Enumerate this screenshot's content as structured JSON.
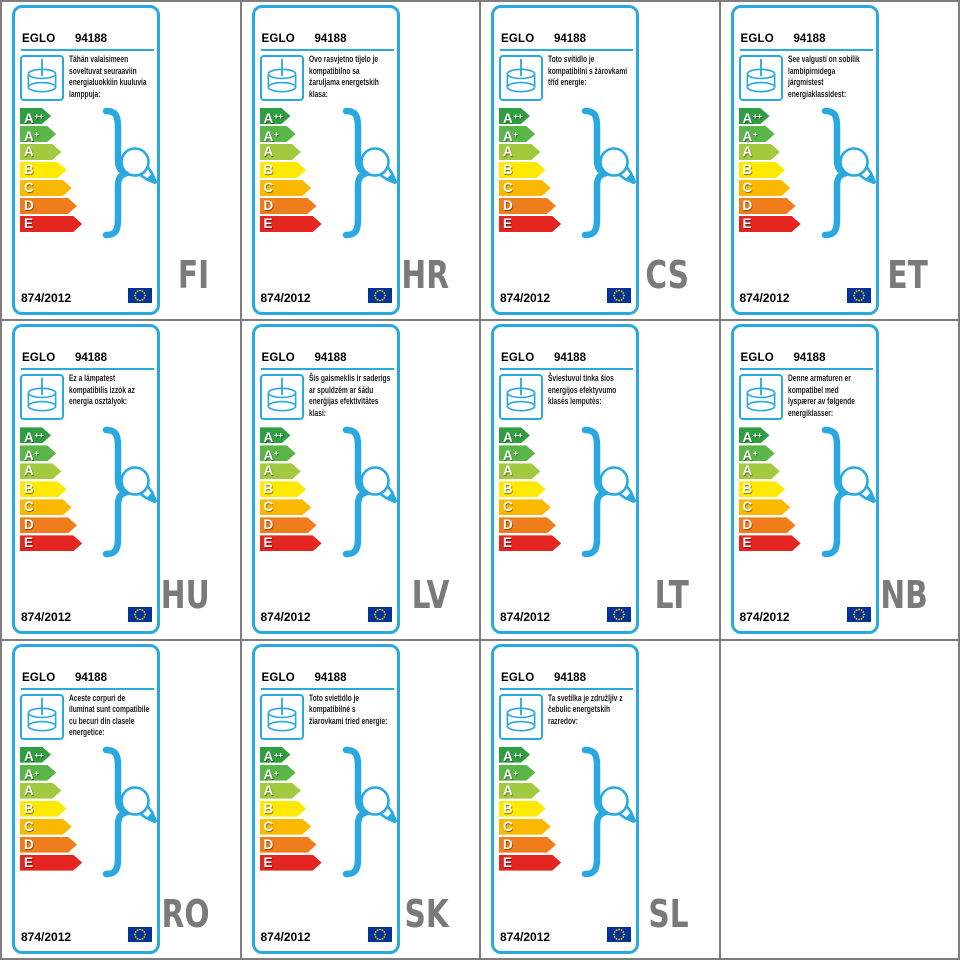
{
  "page": {
    "background": "#ffffff",
    "grid_line_color": "#7e7e7e"
  },
  "grid": {
    "rows": 3,
    "cols": 4,
    "slots": 12
  },
  "shared": {
    "brand": "EGLO",
    "model": "94188",
    "regulation": "874/2012",
    "accent_color": "#29a9e0",
    "lang_code_color": "#7a7a7a",
    "eu_flag": {
      "background": "#003399",
      "star_color": "#ffcc00"
    },
    "energy_classes": [
      {
        "label": "A",
        "sup": "++",
        "color": "#2f9e41"
      },
      {
        "label": "A",
        "sup": "+",
        "color": "#5bb649"
      },
      {
        "label": "A",
        "sup": "",
        "color": "#a3c93e"
      },
      {
        "label": "B",
        "sup": "",
        "color": "#ffe900"
      },
      {
        "label": "C",
        "sup": "",
        "color": "#fbb800"
      },
      {
        "label": "D",
        "sup": "",
        "color": "#ef7d1b"
      },
      {
        "label": "E",
        "sup": "",
        "color": "#e52620"
      }
    ]
  },
  "cards": [
    {
      "lang_code": "FI",
      "description_lines": [
        "Tähän valaisimeen",
        "soveltuvat seuraaviin",
        "energialuokkiin kuuluvia",
        "lamppuja:"
      ]
    },
    {
      "lang_code": "HR",
      "description_lines": [
        "Ovo rasvjetno tijelo je",
        "kompatibilno sa",
        "žaruljama energetskih",
        "klasa:"
      ]
    },
    {
      "lang_code": "CS",
      "description_lines": [
        "Toto svítidlo je",
        "kompatibilní s žárovkami",
        "tříd energie:"
      ]
    },
    {
      "lang_code": "ET",
      "description_lines": [
        "See valgusti on sobilik",
        "lambipirnidega",
        "järgmistest",
        "energiaklassidest:"
      ]
    },
    {
      "lang_code": "HU",
      "description_lines": [
        "Ez a lámpatest",
        "kompatibilis izzók az",
        "energia osztályok:"
      ]
    },
    {
      "lang_code": "LV",
      "description_lines": [
        "Šis gaismeklis ir saderigs",
        "ar spuldzēm ar šādu",
        "enerģijas efektivitātes",
        "klasi:"
      ]
    },
    {
      "lang_code": "LT",
      "description_lines": [
        "Šviestuvui tinka šios",
        "energijos efektyvumo",
        "klasės lemputės:"
      ]
    },
    {
      "lang_code": "NB",
      "description_lines": [
        "Denne armaturen er",
        "kompatibel med",
        "lyspærer av følgende",
        "energiklasser:"
      ]
    },
    {
      "lang_code": "RO",
      "description_lines": [
        "Aceste corpuri de",
        "iluminat sunt compatibile",
        "cu becuri din clasele",
        "energetice:"
      ]
    },
    {
      "lang_code": "SK",
      "description_lines": [
        "Toto svietidlo je",
        "kompatibilné s",
        "žiarovkami tried energie:"
      ]
    },
    {
      "lang_code": "SL",
      "description_lines": [
        "Ta svetilka je združljiv z",
        "čebulic energetskih",
        "razredov:"
      ]
    }
  ]
}
